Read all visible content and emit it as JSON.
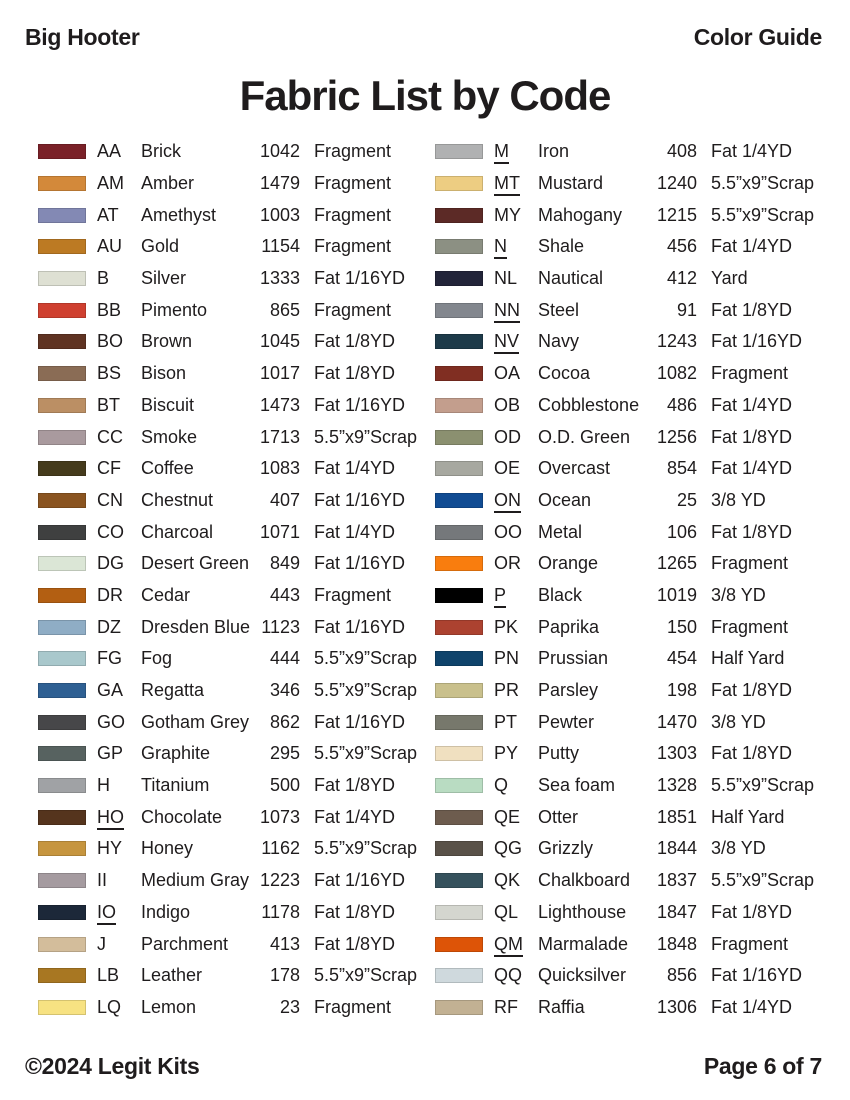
{
  "header": {
    "project": "Big Hooter",
    "doc_type": "Color Guide"
  },
  "title": "Fabric List by Code",
  "footer": {
    "copyright": "©2024 Legit Kits",
    "page": "Page 6 of 7"
  },
  "columns": {
    "left": [
      {
        "code": "AA",
        "underlined": false,
        "name": "Brick",
        "number": "1042",
        "qty": "Fragment",
        "color": "#7a2128"
      },
      {
        "code": "AM",
        "underlined": false,
        "name": "Amber",
        "number": "1479",
        "qty": "Fragment",
        "color": "#d3893a"
      },
      {
        "code": "AT",
        "underlined": false,
        "name": "Amethyst",
        "number": "1003",
        "qty": "Fragment",
        "color": "#8389b4"
      },
      {
        "code": "AU",
        "underlined": false,
        "name": "Gold",
        "number": "1154",
        "qty": "Fragment",
        "color": "#bc7a23"
      },
      {
        "code": "B",
        "underlined": false,
        "name": "Silver",
        "number": "1333",
        "qty": "Fat 1/16YD",
        "color": "#dee0d3"
      },
      {
        "code": "BB",
        "underlined": false,
        "name": "Pimento",
        "number": "865",
        "qty": "Fragment",
        "color": "#cf4030"
      },
      {
        "code": "BO",
        "underlined": false,
        "name": "Brown",
        "number": "1045",
        "qty": "Fat 1/8YD",
        "color": "#5f3322"
      },
      {
        "code": "BS",
        "underlined": false,
        "name": "Bison",
        "number": "1017",
        "qty": "Fat 1/8YD",
        "color": "#8a6c55"
      },
      {
        "code": "BT",
        "underlined": false,
        "name": "Biscuit",
        "number": "1473",
        "qty": "Fat 1/16YD",
        "color": "#bb8f64"
      },
      {
        "code": "CC",
        "underlined": false,
        "name": "Smoke",
        "number": "1713",
        "qty": "5.5”x9”Scrap",
        "color": "#a99a9e"
      },
      {
        "code": "CF",
        "underlined": false,
        "name": "Coffee",
        "number": "1083",
        "qty": "Fat 1/4YD",
        "color": "#453b1c"
      },
      {
        "code": "CN",
        "underlined": false,
        "name": "Chestnut",
        "number": "407",
        "qty": "Fat 1/16YD",
        "color": "#8a5420"
      },
      {
        "code": "CO",
        "underlined": false,
        "name": "Charcoal",
        "number": "1071",
        "qty": "Fat 1/4YD",
        "color": "#3f4040"
      },
      {
        "code": "DG",
        "underlined": false,
        "name": "Desert Green",
        "number": "849",
        "qty": "Fat 1/16YD",
        "color": "#dbe6d6"
      },
      {
        "code": "DR",
        "underlined": false,
        "name": "Cedar",
        "number": "443",
        "qty": "Fragment",
        "color": "#b35f12"
      },
      {
        "code": "DZ",
        "underlined": false,
        "name": "Dresden Blue",
        "number": "1123",
        "qty": "Fat 1/16YD",
        "color": "#8fadc5"
      },
      {
        "code": "FG",
        "underlined": false,
        "name": "Fog",
        "number": "444",
        "qty": "5.5”x9”Scrap",
        "color": "#a9c8cc"
      },
      {
        "code": "GA",
        "underlined": false,
        "name": "Regatta",
        "number": "346",
        "qty": "5.5”x9”Scrap",
        "color": "#2f6093"
      },
      {
        "code": "GO",
        "underlined": false,
        "name": "Gotham Grey",
        "number": "862",
        "qty": "Fat 1/16YD",
        "color": "#474749"
      },
      {
        "code": "GP",
        "underlined": false,
        "name": "Graphite",
        "number": "295",
        "qty": "5.5”x9”Scrap",
        "color": "#576260"
      },
      {
        "code": "H",
        "underlined": false,
        "name": "Titanium",
        "number": "500",
        "qty": "Fat 1/8YD",
        "color": "#a0a2a5"
      },
      {
        "code": "HO",
        "underlined": true,
        "name": "Chocolate",
        "number": "1073",
        "qty": "Fat 1/4YD",
        "color": "#55341d"
      },
      {
        "code": "HY",
        "underlined": false,
        "name": "Honey",
        "number": "1162",
        "qty": "5.5”x9”Scrap",
        "color": "#c6953f"
      },
      {
        "code": "II",
        "underlined": false,
        "name": "Medium Gray",
        "number": "1223",
        "qty": "Fat 1/16YD",
        "color": "#a59ba0"
      },
      {
        "code": "IO",
        "underlined": true,
        "name": "Indigo",
        "number": "1178",
        "qty": "Fat 1/8YD",
        "color": "#1c2839"
      },
      {
        "code": "J",
        "underlined": false,
        "name": "Parchment",
        "number": "413",
        "qty": "Fat 1/8YD",
        "color": "#d3bd9b"
      },
      {
        "code": "LB",
        "underlined": false,
        "name": "Leather",
        "number": "178",
        "qty": "5.5”x9”Scrap",
        "color": "#a87722"
      },
      {
        "code": "LQ",
        "underlined": false,
        "name": "Lemon",
        "number": "23",
        "qty": "Fragment",
        "color": "#f7e282"
      }
    ],
    "right": [
      {
        "code": "M",
        "underlined": true,
        "name": "Iron",
        "number": "408",
        "qty": "Fat 1/4YD",
        "color": "#b0b1b2"
      },
      {
        "code": "MT",
        "underlined": true,
        "name": "Mustard",
        "number": "1240",
        "qty": "5.5”x9”Scrap",
        "color": "#edcd82"
      },
      {
        "code": "MY",
        "underlined": false,
        "name": "Mahogany",
        "number": "1215",
        "qty": "5.5”x9”Scrap",
        "color": "#5c2a26"
      },
      {
        "code": "N",
        "underlined": true,
        "name": "Shale",
        "number": "456",
        "qty": "Fat 1/4YD",
        "color": "#8c9083"
      },
      {
        "code": "NL",
        "underlined": false,
        "name": "Nautical",
        "number": "412",
        "qty": "Yard",
        "color": "#222439"
      },
      {
        "code": "NN",
        "underlined": true,
        "name": "Steel",
        "number": "91",
        "qty": "Fat 1/8YD",
        "color": "#83878e"
      },
      {
        "code": "NV",
        "underlined": true,
        "name": "Navy",
        "number": "1243",
        "qty": "Fat 1/16YD",
        "color": "#1d3a49"
      },
      {
        "code": "OA",
        "underlined": false,
        "name": "Cocoa",
        "number": "1082",
        "qty": "Fragment",
        "color": "#802e22"
      },
      {
        "code": "OB",
        "underlined": false,
        "name": "Cobblestone",
        "number": "486",
        "qty": "Fat 1/4YD",
        "color": "#c39e8d"
      },
      {
        "code": "OD",
        "underlined": false,
        "name": "O.D. Green",
        "number": "1256",
        "qty": "Fat 1/8YD",
        "color": "#8b9070"
      },
      {
        "code": "OE",
        "underlined": false,
        "name": "Overcast",
        "number": "854",
        "qty": "Fat 1/4YD",
        "color": "#a7a8a0"
      },
      {
        "code": "ON",
        "underlined": true,
        "name": "Ocean",
        "number": "25",
        "qty": "3/8 YD",
        "color": "#114c93"
      },
      {
        "code": "OO",
        "underlined": false,
        "name": "Metal",
        "number": "106",
        "qty": "Fat 1/8YD",
        "color": "#75787b"
      },
      {
        "code": "OR",
        "underlined": false,
        "name": "Orange",
        "number": "1265",
        "qty": "Fragment",
        "color": "#f97d0e"
      },
      {
        "code": "P",
        "underlined": true,
        "name": "Black",
        "number": "1019",
        "qty": "3/8 YD",
        "color": "#000000"
      },
      {
        "code": "PK",
        "underlined": false,
        "name": "Paprika",
        "number": "150",
        "qty": "Fragment",
        "color": "#ac4230"
      },
      {
        "code": "PN",
        "underlined": false,
        "name": "Prussian",
        "number": "454",
        "qty": "Half Yard",
        "color": "#0f436b"
      },
      {
        "code": "PR",
        "underlined": false,
        "name": "Parsley",
        "number": "198",
        "qty": "Fat 1/8YD",
        "color": "#c9c08c"
      },
      {
        "code": "PT",
        "underlined": false,
        "name": "Pewter",
        "number": "1470",
        "qty": "3/8 YD",
        "color": "#77786c"
      },
      {
        "code": "PY",
        "underlined": false,
        "name": "Putty",
        "number": "1303",
        "qty": "Fat 1/8YD",
        "color": "#f0e0c0"
      },
      {
        "code": "Q",
        "underlined": false,
        "name": "Sea foam",
        "number": "1328",
        "qty": "5.5”x9”Scrap",
        "color": "#b9dcc2"
      },
      {
        "code": "QE",
        "underlined": false,
        "name": "Otter",
        "number": "1851",
        "qty": "Half Yard",
        "color": "#6d5c4e"
      },
      {
        "code": "QG",
        "underlined": false,
        "name": "Grizzly",
        "number": "1844",
        "qty": "3/8 YD",
        "color": "#595148"
      },
      {
        "code": "QK",
        "underlined": false,
        "name": "Chalkboard",
        "number": "1837",
        "qty": "5.5”x9”Scrap",
        "color": "#36525d"
      },
      {
        "code": "QL",
        "underlined": false,
        "name": "Lighthouse",
        "number": "1847",
        "qty": "Fat 1/8YD",
        "color": "#d4d6cf"
      },
      {
        "code": "QM",
        "underlined": true,
        "name": "Marmalade",
        "number": "1848",
        "qty": "Fragment",
        "color": "#dd5407"
      },
      {
        "code": "QQ",
        "underlined": false,
        "name": "Quicksilver",
        "number": "856",
        "qty": "Fat 1/16YD",
        "color": "#cfd9dd"
      },
      {
        "code": "RF",
        "underlined": false,
        "name": "Raffia",
        "number": "1306",
        "qty": "Fat 1/4YD",
        "color": "#c2b193"
      }
    ]
  }
}
